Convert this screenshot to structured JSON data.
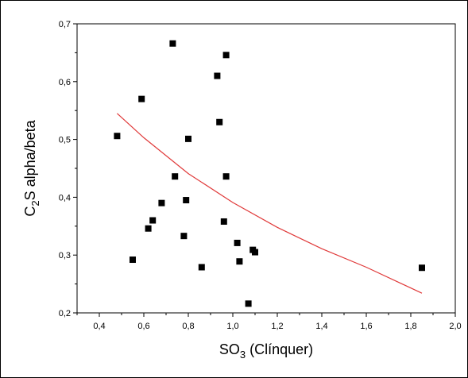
{
  "chart_data": {
    "type": "scatter",
    "xlabel": {
      "prefix": "SO",
      "sub": "3",
      "suffix": " (Clínquer)"
    },
    "ylabel": {
      "prefix": "C",
      "sub": "2",
      "suffix": "S alpha/beta"
    },
    "xlim": [
      0.3,
      2.0
    ],
    "ylim": [
      0.2,
      0.7
    ],
    "x_ticks": [
      "0,4",
      "0,6",
      "0,8",
      "1,0",
      "1,2",
      "1,4",
      "1,6",
      "1,8",
      "2,0"
    ],
    "x_tick_values": [
      0.4,
      0.6,
      0.8,
      1.0,
      1.2,
      1.4,
      1.6,
      1.8,
      2.0
    ],
    "y_ticks": [
      "0,2",
      "0,3",
      "0,4",
      "0,5",
      "0,6",
      "0,7"
    ],
    "y_tick_values": [
      0.2,
      0.3,
      0.4,
      0.5,
      0.6,
      0.7
    ],
    "grid": false,
    "points": [
      {
        "x": 0.48,
        "y": 0.506
      },
      {
        "x": 0.55,
        "y": 0.292
      },
      {
        "x": 0.59,
        "y": 0.57
      },
      {
        "x": 0.62,
        "y": 0.346
      },
      {
        "x": 0.64,
        "y": 0.36
      },
      {
        "x": 0.68,
        "y": 0.39
      },
      {
        "x": 0.73,
        "y": 0.666
      },
      {
        "x": 0.74,
        "y": 0.436
      },
      {
        "x": 0.78,
        "y": 0.333
      },
      {
        "x": 0.79,
        "y": 0.395
      },
      {
        "x": 0.8,
        "y": 0.501
      },
      {
        "x": 0.86,
        "y": 0.279
      },
      {
        "x": 0.93,
        "y": 0.61
      },
      {
        "x": 0.94,
        "y": 0.53
      },
      {
        "x": 0.96,
        "y": 0.358
      },
      {
        "x": 0.97,
        "y": 0.646
      },
      {
        "x": 0.97,
        "y": 0.436
      },
      {
        "x": 1.02,
        "y": 0.321
      },
      {
        "x": 1.03,
        "y": 0.289
      },
      {
        "x": 1.07,
        "y": 0.216
      },
      {
        "x": 1.09,
        "y": 0.309
      },
      {
        "x": 1.1,
        "y": 0.305
      },
      {
        "x": 1.85,
        "y": 0.278
      }
    ],
    "fit_curve": [
      {
        "x": 0.48,
        "y": 0.545
      },
      {
        "x": 0.6,
        "y": 0.503
      },
      {
        "x": 0.8,
        "y": 0.441
      },
      {
        "x": 1.0,
        "y": 0.391
      },
      {
        "x": 1.2,
        "y": 0.348
      },
      {
        "x": 1.4,
        "y": 0.311
      },
      {
        "x": 1.6,
        "y": 0.279
      },
      {
        "x": 1.85,
        "y": 0.234
      }
    ],
    "colors": {
      "points": "#000000",
      "fit": "#e03a3a",
      "axes": "#000000"
    }
  }
}
